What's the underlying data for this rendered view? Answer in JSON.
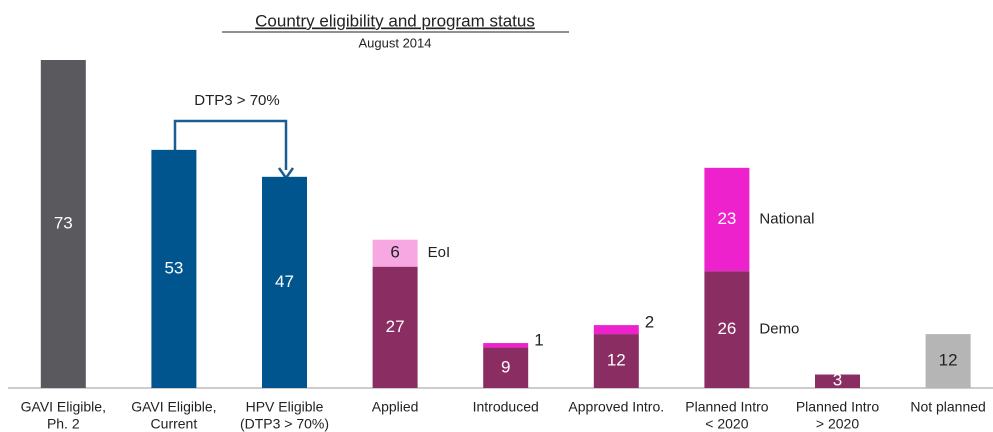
{
  "chart_data": {
    "type": "stacked_bar",
    "title": "Country eligibility and program status",
    "subtitle": "August 2014",
    "annotation": "DTP3 > 70%",
    "categories": [
      [
        "GAVI Eligible,",
        "Ph. 2"
      ],
      [
        "GAVI Eligible,",
        "Current"
      ],
      [
        "HPV Eligible",
        "(DTP3 > 70%)"
      ],
      [
        "Applied"
      ],
      [
        "Introduced"
      ],
      [
        "Approved Intro."
      ],
      [
        "Planned Intro",
        "< 2020"
      ],
      [
        "Planned Intro",
        "> 2020"
      ],
      [
        "Not planned"
      ]
    ],
    "series": [
      {
        "values": [
          73,
          53,
          47,
          27,
          9,
          12,
          26,
          3,
          12
        ],
        "colors": [
          "#5a5a5e",
          "#00558f",
          "#00558f",
          "#8a2d63",
          "#8a2d63",
          "#8a2d63",
          "#8a2d63",
          "#8a2d63",
          "#b5b5b5"
        ],
        "segment_labels": [
          null,
          null,
          null,
          null,
          null,
          null,
          "Demo",
          null,
          null
        ]
      },
      {
        "values": [
          null,
          null,
          null,
          6,
          1,
          2,
          23,
          null,
          null
        ],
        "colors": [
          null,
          null,
          null,
          "#f7a8e2",
          "#ee22cc",
          "#ee22cc",
          "#ee22cc",
          null,
          null
        ],
        "segment_labels": [
          null,
          null,
          null,
          "EoI",
          null,
          null,
          "National",
          null,
          null
        ]
      }
    ],
    "ylim": [
      0,
      73
    ]
  }
}
